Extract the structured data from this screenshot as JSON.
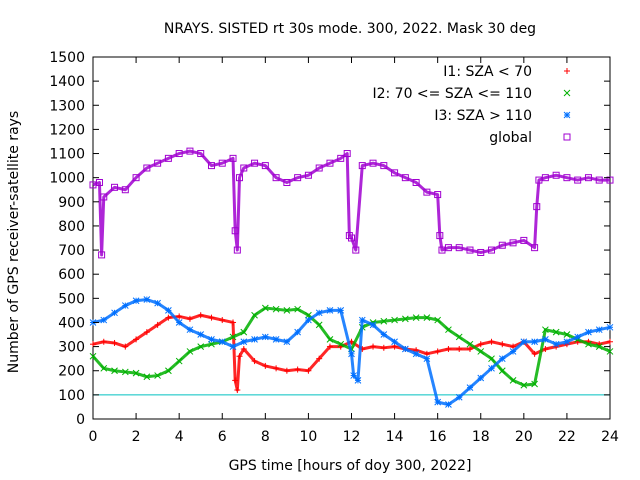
{
  "chart_data": {
    "type": "scatter",
    "title": "NRAYS. SISTED rt 30s mode. 300, 2022. Mask 30 deg",
    "xlabel": "GPS time [hours of doy 300, 2022]",
    "ylabel": "Number of GPS receiver-satellite rays",
    "xlim": [
      0,
      24
    ],
    "ylim": [
      0,
      1500
    ],
    "xticks": [
      0,
      2,
      4,
      6,
      8,
      10,
      12,
      14,
      16,
      18,
      20,
      22,
      24
    ],
    "yticks": [
      0,
      100,
      200,
      300,
      400,
      500,
      600,
      700,
      800,
      900,
      1000,
      1100,
      1200,
      1300,
      1400,
      1500
    ],
    "legend_position": "top-right",
    "reference_line": {
      "y": 100,
      "color": "#00c0c0"
    },
    "series": [
      {
        "name": "I1: SZA < 70",
        "marker": "+",
        "color": "#ff0000",
        "points": [
          [
            0,
            310
          ],
          [
            0.5,
            320
          ],
          [
            1,
            315
          ],
          [
            1.5,
            300
          ],
          [
            2,
            330
          ],
          [
            2.5,
            360
          ],
          [
            3,
            390
          ],
          [
            3.5,
            420
          ],
          [
            4,
            425
          ],
          [
            4.5,
            415
          ],
          [
            5,
            430
          ],
          [
            5.5,
            420
          ],
          [
            6,
            410
          ],
          [
            6.5,
            400
          ],
          [
            6.6,
            160
          ],
          [
            6.7,
            120
          ],
          [
            6.8,
            260
          ],
          [
            7,
            290
          ],
          [
            7.5,
            240
          ],
          [
            8,
            220
          ],
          [
            8.5,
            210
          ],
          [
            9,
            200
          ],
          [
            9.5,
            205
          ],
          [
            10,
            200
          ],
          [
            10.5,
            250
          ],
          [
            11,
            300
          ],
          [
            11.5,
            300
          ],
          [
            12,
            320
          ],
          [
            12.5,
            290
          ],
          [
            13,
            300
          ],
          [
            13.5,
            295
          ],
          [
            14,
            300
          ],
          [
            14.5,
            290
          ],
          [
            15,
            285
          ],
          [
            15.5,
            270
          ],
          [
            16,
            280
          ],
          [
            16.5,
            290
          ],
          [
            17,
            290
          ],
          [
            17.5,
            290
          ],
          [
            18,
            310
          ],
          [
            18.5,
            320
          ],
          [
            19,
            310
          ],
          [
            19.5,
            300
          ],
          [
            20,
            320
          ],
          [
            20.5,
            270
          ],
          [
            21,
            290
          ],
          [
            21.5,
            300
          ],
          [
            22,
            310
          ],
          [
            22.5,
            320
          ],
          [
            23,
            320
          ],
          [
            23.5,
            310
          ],
          [
            24,
            320
          ]
        ]
      },
      {
        "name": "I2: 70 <= SZA <= 110",
        "marker": "x",
        "color": "#00b000",
        "points": [
          [
            0,
            260
          ],
          [
            0.5,
            210
          ],
          [
            1,
            200
          ],
          [
            1.5,
            195
          ],
          [
            2,
            190
          ],
          [
            2.5,
            175
          ],
          [
            3,
            180
          ],
          [
            3.5,
            200
          ],
          [
            4,
            240
          ],
          [
            4.5,
            280
          ],
          [
            5,
            300
          ],
          [
            5.5,
            310
          ],
          [
            6,
            320
          ],
          [
            6.5,
            340
          ],
          [
            7,
            360
          ],
          [
            7.5,
            430
          ],
          [
            8,
            460
          ],
          [
            8.5,
            455
          ],
          [
            9,
            450
          ],
          [
            9.5,
            455
          ],
          [
            10,
            430
          ],
          [
            10.5,
            390
          ],
          [
            11,
            330
          ],
          [
            11.5,
            310
          ],
          [
            12,
            290
          ],
          [
            12.5,
            380
          ],
          [
            13,
            400
          ],
          [
            13.5,
            405
          ],
          [
            14,
            410
          ],
          [
            14.5,
            415
          ],
          [
            15,
            420
          ],
          [
            15.5,
            420
          ],
          [
            16,
            410
          ],
          [
            16.5,
            370
          ],
          [
            17,
            340
          ],
          [
            17.5,
            310
          ],
          [
            18,
            280
          ],
          [
            18.5,
            250
          ],
          [
            19,
            200
          ],
          [
            19.5,
            160
          ],
          [
            20,
            140
          ],
          [
            20.5,
            145
          ],
          [
            21,
            370
          ],
          [
            21.5,
            360
          ],
          [
            22,
            350
          ],
          [
            22.5,
            330
          ],
          [
            23,
            310
          ],
          [
            23.5,
            300
          ],
          [
            24,
            280
          ]
        ]
      },
      {
        "name": "I3: SZA > 110",
        "marker": "*",
        "color": "#0070ff",
        "points": [
          [
            0,
            400
          ],
          [
            0.5,
            410
          ],
          [
            1,
            440
          ],
          [
            1.5,
            470
          ],
          [
            2,
            490
          ],
          [
            2.5,
            495
          ],
          [
            3,
            480
          ],
          [
            3.5,
            450
          ],
          [
            4,
            400
          ],
          [
            4.5,
            370
          ],
          [
            5,
            350
          ],
          [
            5.5,
            330
          ],
          [
            6,
            320
          ],
          [
            6.5,
            300
          ],
          [
            7,
            320
          ],
          [
            7.5,
            330
          ],
          [
            8,
            340
          ],
          [
            8.5,
            330
          ],
          [
            9,
            320
          ],
          [
            9.5,
            360
          ],
          [
            10,
            410
          ],
          [
            10.5,
            440
          ],
          [
            11,
            450
          ],
          [
            11.5,
            450
          ],
          [
            12,
            270
          ],
          [
            12.1,
            180
          ],
          [
            12.3,
            160
          ],
          [
            12.5,
            410
          ],
          [
            13,
            390
          ],
          [
            13.5,
            350
          ],
          [
            14,
            320
          ],
          [
            14.5,
            290
          ],
          [
            15,
            270
          ],
          [
            15.5,
            250
          ],
          [
            16,
            70
          ],
          [
            16.5,
            60
          ],
          [
            17,
            90
          ],
          [
            17.5,
            130
          ],
          [
            18,
            170
          ],
          [
            18.5,
            210
          ],
          [
            19,
            250
          ],
          [
            19.5,
            280
          ],
          [
            20,
            320
          ],
          [
            20.5,
            320
          ],
          [
            21,
            330
          ],
          [
            21.5,
            310
          ],
          [
            22,
            320
          ],
          [
            22.5,
            340
          ],
          [
            23,
            360
          ],
          [
            23.5,
            370
          ],
          [
            24,
            380
          ]
        ]
      },
      {
        "name": "global",
        "marker": "square",
        "color": "#a000d0",
        "points": [
          [
            0,
            970
          ],
          [
            0.3,
            980
          ],
          [
            0.4,
            680
          ],
          [
            0.5,
            920
          ],
          [
            1,
            960
          ],
          [
            1.5,
            950
          ],
          [
            2,
            1000
          ],
          [
            2.5,
            1040
          ],
          [
            3,
            1060
          ],
          [
            3.5,
            1080
          ],
          [
            4,
            1100
          ],
          [
            4.5,
            1110
          ],
          [
            5,
            1100
          ],
          [
            5.5,
            1050
          ],
          [
            6,
            1060
          ],
          [
            6.5,
            1080
          ],
          [
            6.6,
            780
          ],
          [
            6.7,
            700
          ],
          [
            6.8,
            1000
          ],
          [
            7,
            1040
          ],
          [
            7.5,
            1060
          ],
          [
            8,
            1050
          ],
          [
            8.5,
            1000
          ],
          [
            9,
            980
          ],
          [
            9.5,
            1000
          ],
          [
            10,
            1010
          ],
          [
            10.5,
            1040
          ],
          [
            11,
            1060
          ],
          [
            11.5,
            1080
          ],
          [
            11.8,
            1100
          ],
          [
            11.9,
            760
          ],
          [
            12,
            750
          ],
          [
            12.2,
            700
          ],
          [
            12.5,
            1050
          ],
          [
            13,
            1060
          ],
          [
            13.5,
            1050
          ],
          [
            14,
            1020
          ],
          [
            14.5,
            1000
          ],
          [
            15,
            980
          ],
          [
            15.5,
            940
          ],
          [
            16,
            930
          ],
          [
            16.1,
            760
          ],
          [
            16.2,
            700
          ],
          [
            16.5,
            710
          ],
          [
            17,
            710
          ],
          [
            17.5,
            700
          ],
          [
            18,
            690
          ],
          [
            18.5,
            700
          ],
          [
            19,
            720
          ],
          [
            19.5,
            730
          ],
          [
            20,
            740
          ],
          [
            20.5,
            710
          ],
          [
            20.6,
            880
          ],
          [
            20.7,
            990
          ],
          [
            21,
            1000
          ],
          [
            21.5,
            1010
          ],
          [
            22,
            1000
          ],
          [
            22.5,
            990
          ],
          [
            23,
            1000
          ],
          [
            23.5,
            990
          ],
          [
            24,
            990
          ]
        ]
      }
    ]
  }
}
